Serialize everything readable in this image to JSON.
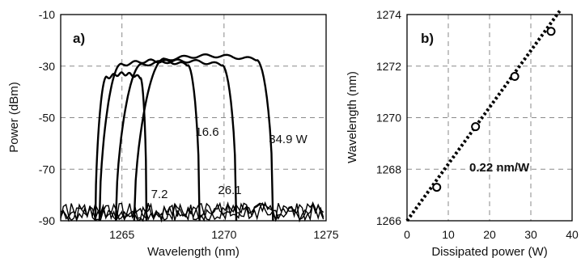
{
  "chart_data": [
    {
      "type": "line",
      "panel_label": "a)",
      "xlabel": "Wavelength (nm)",
      "ylabel": "Power (dBm)",
      "xlim": [
        1262,
        1275
      ],
      "ylim": [
        -90,
        -10
      ],
      "xticks": [
        1265,
        1270,
        1275
      ],
      "yticks": [
        -10,
        -30,
        -50,
        -70,
        -90
      ],
      "grid": true,
      "series": [
        {
          "name": "7.2",
          "center": 1264.8,
          "left_edge": 1263.7,
          "right_edge": 1266.2,
          "peak_dbm": -33
        },
        {
          "name": "16.6",
          "center": 1266.8,
          "left_edge": 1263.9,
          "right_edge": 1268.8,
          "peak_dbm": -28
        },
        {
          "name": "26.1",
          "center": 1267.8,
          "left_edge": 1264.7,
          "right_edge": 1270.6,
          "peak_dbm": -28
        },
        {
          "name": "34.9 W",
          "center": 1269.6,
          "left_edge": 1265.6,
          "right_edge": 1272.4,
          "peak_dbm": -26
        }
      ],
      "annotations": [
        "7.2",
        "16.6",
        "26.1",
        "34.9 W"
      ]
    },
    {
      "type": "scatter",
      "panel_label": "b)",
      "xlabel": "Dissipated power (W)",
      "ylabel": "Wavelength (nm)",
      "xlim": [
        0,
        40
      ],
      "ylim": [
        1266,
        1274
      ],
      "xticks": [
        0,
        10,
        20,
        30,
        40
      ],
      "yticks": [
        1266,
        1268,
        1270,
        1272,
        1274
      ],
      "grid": true,
      "points": [
        {
          "x": 7.2,
          "y": 1267.3
        },
        {
          "x": 16.6,
          "y": 1269.65
        },
        {
          "x": 26.1,
          "y": 1271.6
        },
        {
          "x": 34.9,
          "y": 1273.35
        }
      ],
      "fit": {
        "slope": 0.22,
        "intercept": 1266.0,
        "x_range": [
          0,
          37
        ]
      },
      "annotation": "0.22 nm/W"
    }
  ]
}
